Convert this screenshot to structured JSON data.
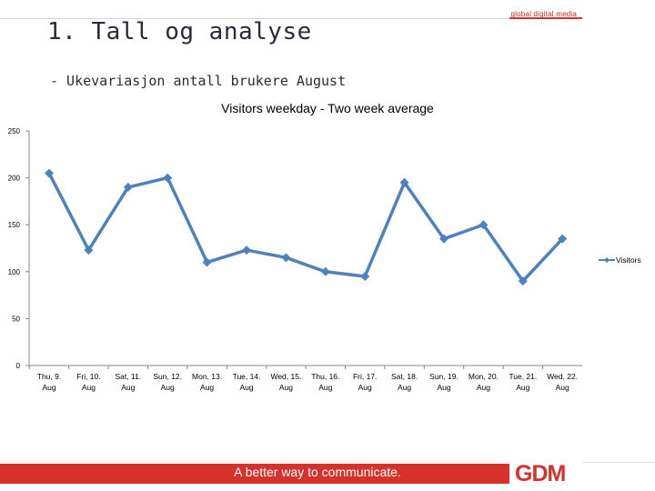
{
  "header": {
    "brand_tag": "global digital media",
    "title": "1. Tall og analyse",
    "subtitle": "- Ukevariasjon antall brukere August"
  },
  "footer": {
    "tagline": "A better way to communicate.",
    "logo": "GDM"
  },
  "colors": {
    "accent": "#d4322a",
    "series": "#4f81bd"
  },
  "chart_data": {
    "type": "line",
    "title": "Visitors weekday - Two week average",
    "xlabel": "",
    "ylabel": "",
    "ylim": [
      0,
      250
    ],
    "yticks": [
      0,
      50,
      100,
      150,
      200,
      250
    ],
    "grid": false,
    "legend": "right",
    "categories": [
      [
        "Thu, 9.",
        "Aug"
      ],
      [
        "Fri, 10.",
        "Aug"
      ],
      [
        "Sat, 11.",
        "Aug"
      ],
      [
        "Sun, 12.",
        "Aug"
      ],
      [
        "Mon, 13.",
        "Aug"
      ],
      [
        "Tue, 14.",
        "Aug"
      ],
      [
        "Wed, 15.",
        "Aug"
      ],
      [
        "Thu, 16.",
        "Aug"
      ],
      [
        "Fri, 17.",
        "Aug"
      ],
      [
        "Sat, 18.",
        "Aug"
      ],
      [
        "Sun, 19.",
        "Aug"
      ],
      [
        "Mon, 20.",
        "Aug"
      ],
      [
        "Tue, 21.",
        "Aug"
      ],
      [
        "Wed, 22.",
        "Aug"
      ]
    ],
    "series": [
      {
        "name": "Visitors",
        "values": [
          205,
          123,
          190,
          200,
          110,
          123,
          115,
          100,
          95,
          195,
          135,
          150,
          90,
          135
        ]
      }
    ]
  }
}
